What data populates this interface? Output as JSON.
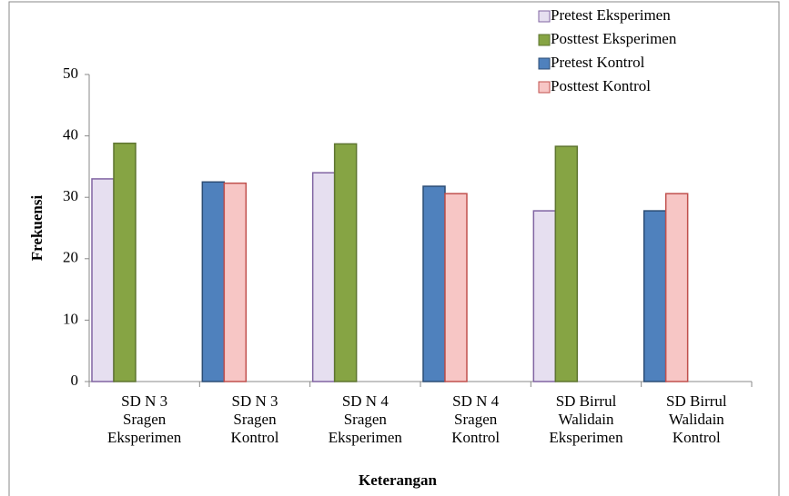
{
  "chart_data": {
    "type": "bar",
    "x_label": "Keterangan",
    "y_label": "Frekuensi",
    "categories": [
      "SD N 3 Sragen Eksperimen",
      "SD N 3 Sragen Kontrol",
      "SD N 4 Sragen Eksperimen",
      "SD N 4 Sragen Kontrol",
      "SD Birrul Walidain Eksperimen",
      "SD Birrul Walidain Kontrol"
    ],
    "series": [
      {
        "name": "Pretest Eksperimen",
        "color": "#e6dff0",
        "border": "#8064a2",
        "values": [
          33,
          null,
          34,
          null,
          27.8,
          null
        ]
      },
      {
        "name": "Posttest Eksperimen",
        "color": "#86a444",
        "border": "#5e7530",
        "values": [
          38.8,
          null,
          38.7,
          null,
          38.3,
          null
        ]
      },
      {
        "name": "Pretest Kontrol",
        "color": "#4f81bd",
        "border": "#2c4d75",
        "values": [
          null,
          32.5,
          null,
          31.8,
          null,
          27.8
        ]
      },
      {
        "name": "Posttest Kontrol",
        "color": "#f7c6c5",
        "border": "#c0504d",
        "values": [
          null,
          32.3,
          null,
          30.6,
          null,
          30.6
        ]
      }
    ],
    "ylim": [
      0,
      50
    ],
    "yticks": [
      0,
      10,
      20,
      30,
      40,
      50
    ],
    "grid": false,
    "legend": "top-right"
  }
}
